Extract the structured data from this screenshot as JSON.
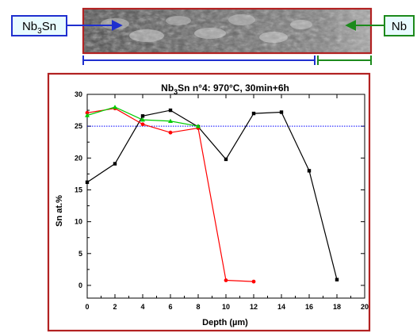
{
  "labels": {
    "nb3sn_base": "Nb",
    "nb3sn_sub": "3",
    "nb3sn_tail": "Sn",
    "nb": "Nb"
  },
  "colors": {
    "frame_red": "#b22222",
    "nb3sn_blue": "#1f2fcf",
    "nb_green": "#1c8a1c",
    "label_box_fill": "#e8fbff",
    "sem_dark": "#3f3f3f",
    "sem_light": "#b7b7b7"
  },
  "chart_data": {
    "type": "line",
    "title": "Nb3Sn n°4: 970°C, 30min+6h",
    "title_parts": {
      "pre": "Nb",
      "sub": "3",
      "post": "Sn n°4: 970°C, 30min+6h"
    },
    "xlabel": "Depth (µm)",
    "ylabel": "Sn at.%",
    "xlim": [
      0,
      20
    ],
    "ylim": [
      -2,
      30
    ],
    "x_ticks": [
      0,
      2,
      4,
      6,
      8,
      10,
      12,
      14,
      16,
      18,
      20
    ],
    "y_ticks": [
      0,
      5,
      10,
      15,
      20,
      25,
      30
    ],
    "grid": false,
    "reference_line": {
      "y": 25,
      "color": "#0000ff",
      "style": "dotted"
    },
    "series": [
      {
        "color": "#000000",
        "marker": "square",
        "points": [
          [
            0,
            16.2
          ],
          [
            2,
            19.1
          ],
          [
            4,
            26.6
          ],
          [
            6,
            27.5
          ],
          [
            8,
            24.9
          ],
          [
            10,
            19.8
          ],
          [
            12,
            27.0
          ],
          [
            14,
            27.2
          ],
          [
            16,
            18.0
          ],
          [
            18,
            0.9
          ]
        ]
      },
      {
        "color": "#ff0000",
        "marker": "circle",
        "points": [
          [
            0,
            27.1
          ],
          [
            2,
            27.8
          ],
          [
            4,
            25.3
          ],
          [
            6,
            24.0
          ],
          [
            8,
            24.7
          ],
          [
            10,
            0.8
          ],
          [
            12,
            0.6
          ]
        ]
      },
      {
        "color": "#00cc00",
        "marker": "triangle",
        "points": [
          [
            0,
            26.7
          ],
          [
            2,
            28.0
          ],
          [
            4,
            26.0
          ],
          [
            6,
            25.8
          ],
          [
            8,
            25.0
          ]
        ]
      }
    ]
  }
}
